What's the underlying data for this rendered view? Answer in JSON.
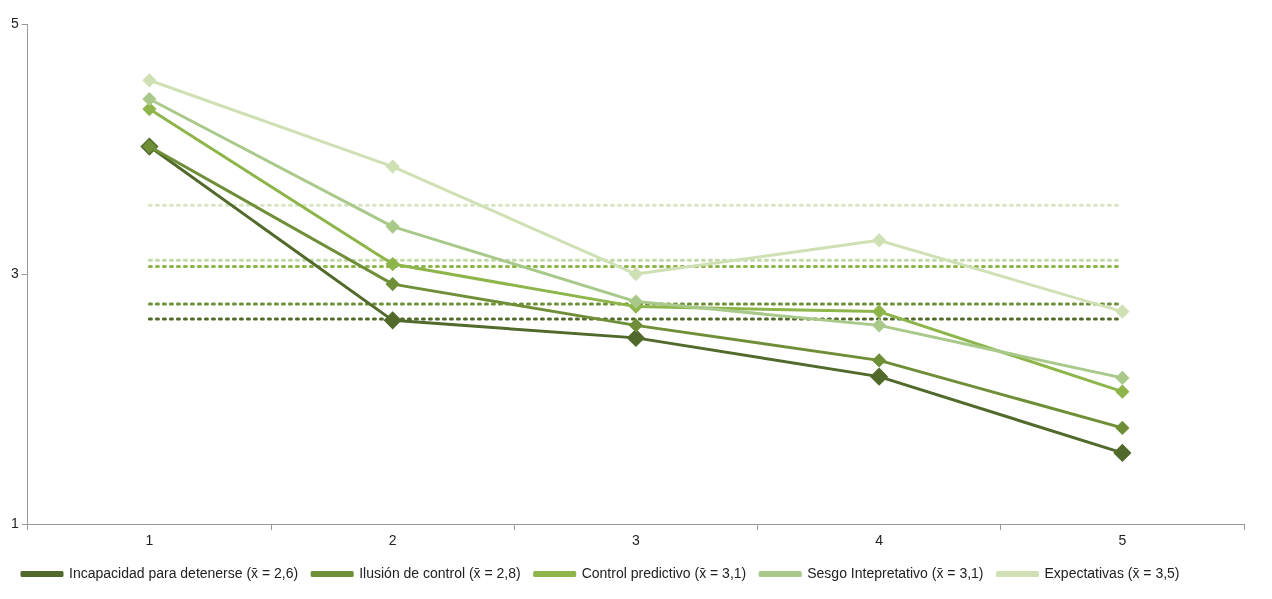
{
  "chart_data": {
    "type": "line",
    "categories": [
      "1",
      "2",
      "3",
      "4",
      "5"
    ],
    "series": [
      {
        "name": "Incapacidad para detenerse (x̄ = 2,6)",
        "color": "#51692b",
        "values": [
          4.02,
          2.63,
          2.49,
          2.18,
          1.57
        ]
      },
      {
        "name": "Ilusión de control (x̄ = 2,8)",
        "color": "#6e8f37",
        "values": [
          4.02,
          2.92,
          2.59,
          2.31,
          1.77
        ]
      },
      {
        "name": "Control predictivo (x̄ = 3,1)",
        "color": "#8db54a",
        "values": [
          4.32,
          3.08,
          2.74,
          2.7,
          2.06
        ]
      },
      {
        "name": "Sesgo Intepretativo (x̄ = 3,1)",
        "color": "#a8c98a",
        "values": [
          4.4,
          3.38,
          2.78,
          2.59,
          2.17
        ]
      },
      {
        "name": "Expectativas (x̄ = 3,5)",
        "color": "#cfe0b5",
        "values": [
          4.55,
          3.86,
          3.0,
          3.27,
          2.7
        ]
      }
    ],
    "ylim": [
      1,
      5
    ],
    "yticks": [
      1,
      3,
      5
    ],
    "marker": "diamond",
    "line_style": "solid",
    "legend": "bottom",
    "ref_lines": [
      {
        "axis": "y",
        "value": 2.64,
        "color": "#51692b",
        "line_style": "dotted"
      },
      {
        "axis": "y",
        "value": 2.76,
        "color": "#6e8f37",
        "line_style": "dotted"
      },
      {
        "axis": "y",
        "value": 3.06,
        "color": "#8db54a",
        "line_style": "dotted"
      },
      {
        "axis": "y",
        "value": 3.11,
        "color": "#c2d8a8",
        "line_style": "dotted"
      },
      {
        "axis": "y",
        "value": 3.55,
        "color": "#d8e6c6",
        "line_style": "dotted"
      }
    ]
  }
}
